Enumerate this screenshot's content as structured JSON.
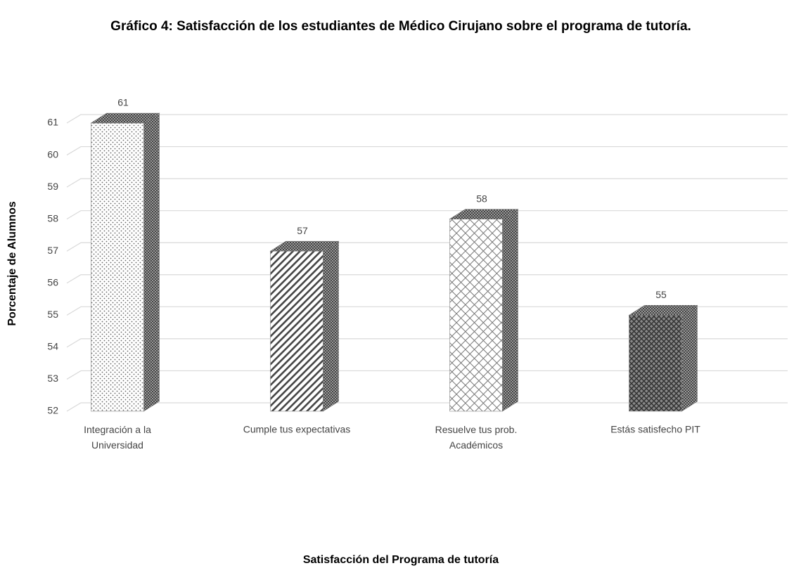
{
  "chart_data": {
    "type": "bar3d",
    "title": "Gráfico 4: Satisfacción de los estudiantes de Médico Cirujano sobre el programa de tutoría.",
    "x_label": "Satisfacción del Programa de tutoría",
    "y_label": "Porcentaje de Alumnos",
    "categories": [
      "Integración a la Universidad",
      "Cumple tus expectativas",
      "Resuelve tus prob. Académicos",
      "Estás satisfecho PIT"
    ],
    "values": [
      61,
      57,
      58,
      55
    ],
    "ylim": [
      52,
      61
    ],
    "yticks": [
      52,
      53,
      54,
      55,
      56,
      57,
      58,
      59,
      60,
      61
    ],
    "grid": true
  }
}
